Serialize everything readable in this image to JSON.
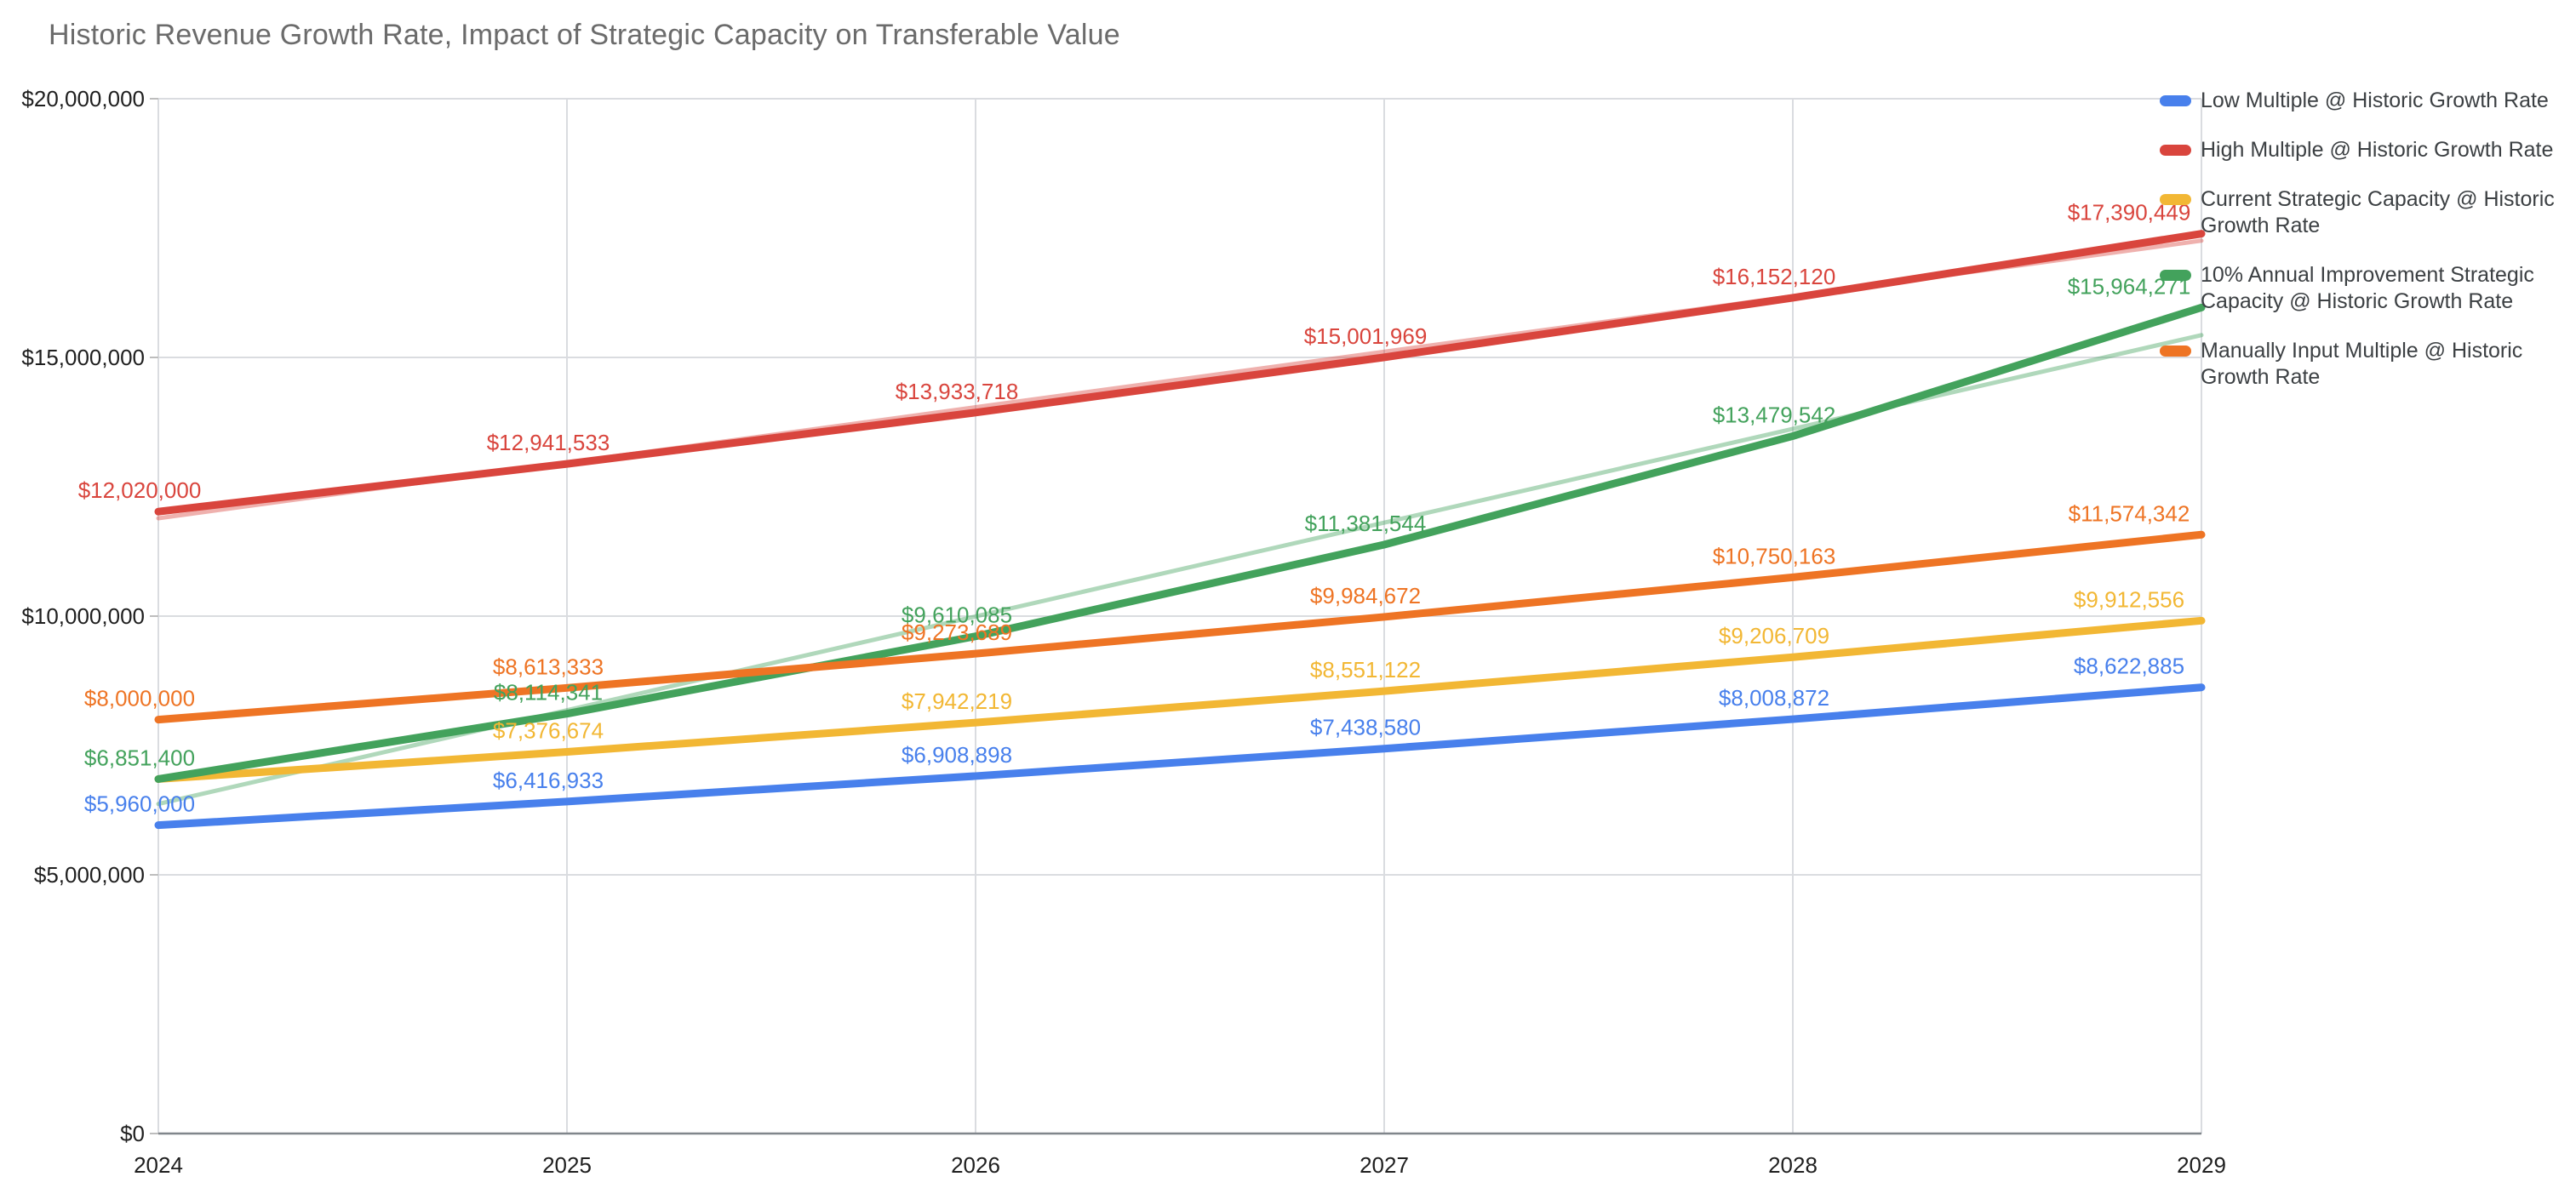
{
  "title": "Historic Revenue Growth Rate, Impact of Strategic Capacity on Transferable Value",
  "chart_data": {
    "type": "line",
    "title": "Historic Revenue Growth Rate, Impact of Strategic Capacity on Transferable Value",
    "x_labels": [
      "2024",
      "2025",
      "2026",
      "2027",
      "2028",
      "2029"
    ],
    "ylim": [
      0,
      20000000
    ],
    "ytick_labels": [
      "$0",
      "$5,000,000",
      "$10,000,000",
      "$15,000,000",
      "$20,000,000"
    ],
    "grid": true,
    "legend_position": "right",
    "colors": {
      "grid": "#dadce0",
      "axis_baseline": "#80868b",
      "tick_text": "#1f1f1f",
      "title_text": "#6b6b6b",
      "legend_text": "#3c4043"
    },
    "series": [
      {
        "name": "Low Multiple @ Historic Growth Rate",
        "legend_lines": [
          "Low Multiple @ Historic Growth Rate"
        ],
        "color": "#4880ec",
        "values": [
          5960000,
          6416933,
          6908898,
          7438580,
          8008872,
          8622885
        ],
        "labels": [
          "$5,960,000",
          "$6,416,933",
          "$6,908,898",
          "$7,438,580",
          "$8,008,872",
          "$8,622,885"
        ]
      },
      {
        "name": "High Multiple @ Historic Growth Rate",
        "legend_lines": [
          "High Multiple @ Historic Growth Rate"
        ],
        "color": "#d9453d",
        "values": [
          12020000,
          12941533,
          13933718,
          15001969,
          16152120,
          17390449
        ],
        "labels": [
          "$12,020,000",
          "$12,941,533",
          "$13,933,718",
          "$15,001,969",
          "$16,152,120",
          "$17,390,449"
        ],
        "trendline": {
          "start": 11891000,
          "end": 17256000
        }
      },
      {
        "name": "Current Strategic Capacity @ Historic Growth Rate",
        "legend_lines": [
          "Current Strategic Capacity @ Historic",
          "Growth Rate"
        ],
        "color": "#f2b734",
        "values": [
          6851400,
          7376674,
          7942219,
          8551122,
          9206709,
          9912556
        ],
        "labels": [
          null,
          "$7,376,674",
          "$7,942,219",
          "$8,551,122",
          "$9,206,709",
          "$9,912,556"
        ]
      },
      {
        "name": "10% Annual Improvement Strategic Capacity @ Historic Growth Rate",
        "legend_lines": [
          "10% Annual Improvement Strategic",
          "Capacity @ Historic Growth Rate"
        ],
        "color": "#43a25c",
        "values": [
          6851400,
          8114341,
          9610085,
          11381544,
          13479542,
          15964271
        ],
        "labels": [
          "$6,851,400",
          "$8,114,341",
          "$9,610,085",
          "$11,381,544",
          "$13,479,542",
          "$15,964,271"
        ],
        "trendline": {
          "start": 6370000,
          "end": 15431000
        }
      },
      {
        "name": "Manually Input Multiple @ Historic Growth Rate",
        "legend_lines": [
          "Manually Input Multiple @ Historic",
          "Growth Rate"
        ],
        "color": "#ee7424",
        "values": [
          8000000,
          8613333,
          9273689,
          9984672,
          10750163,
          11574342
        ],
        "labels": [
          "$8,000,000",
          "$8,613,333",
          "$9,273,689",
          "$9,984,672",
          "$10,750,163",
          "$11,574,342"
        ]
      }
    ]
  }
}
